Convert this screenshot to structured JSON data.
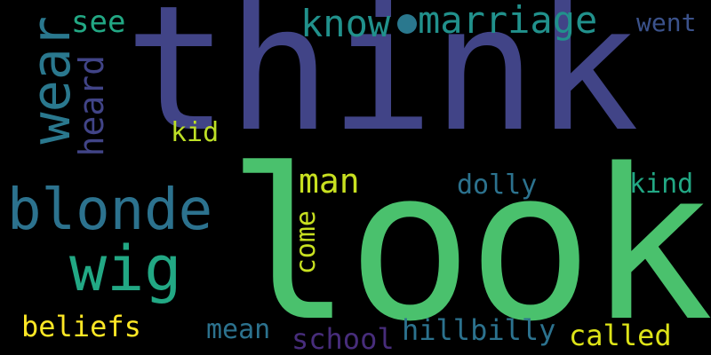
{
  "background": "#000000",
  "words": {
    "think": "think",
    "look": "look",
    "blonde": "blonde",
    "wig": "wig",
    "wear": "wear",
    "heard": "heard",
    "see": "see",
    "know": "know",
    "marriage": "marriage",
    "went": "went",
    "kid": "kid",
    "man": "man",
    "dolly": "dolly",
    "kind": "kind",
    "come": "come",
    "beliefs": "beliefs",
    "mean": "mean",
    "school": "school",
    "hillbilly": "hillbilly",
    "called": "called"
  },
  "colors": {
    "think": "#414487",
    "look": "#4ac16d",
    "blonde": "#2c728e",
    "wig": "#22a884",
    "wear": "#2a788e",
    "heard": "#414487",
    "see": "#22a884",
    "know": "#21918c",
    "marriage": "#21918c",
    "went": "#3b528b",
    "kid": "#bddf26",
    "man": "#c8e020",
    "dolly": "#2c728e",
    "kind": "#22a884",
    "come": "#c8e020",
    "beliefs": "#fde725",
    "mean": "#2c728e",
    "school": "#472d7b",
    "hillbilly": "#2c728e",
    "called": "#dde318"
  }
}
